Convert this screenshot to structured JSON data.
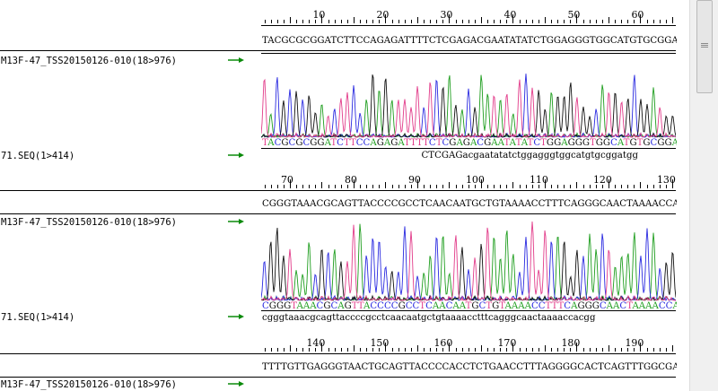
{
  "reference": {
    "name": "M13F-47_TSS20150126-010(18>976)",
    "rows": [
      "TACGCGCGGATCTTCCAGAGATTTTCTCGAGACGAATATATCTGGAGGGTGGCATGTGCGGATGG",
      "CGGGTAAACGCAGTTACCCCGCCTCAACAATGCTGTAAAACCTTTCAGGGCAACTAAAACCACGG",
      "TTTTGTTGAGGGTAACTGCAGTTACCCCACCTCTGAACCTTTAGGGGCACTCAGTTTGGCGATA"
    ]
  },
  "read": {
    "name": "71.SEQ(1>414)",
    "rows": [
      {
        "called": "TACGCGCGGATCTTCCAGAGATTTTCTCGAGACGAATATATCTGGAGGGTGGCATGTGCGGATGG",
        "aligned": "CTCGAGacgaatatatctggagggtggcatgtgcggatgg",
        "aligned_offset": 25
      },
      {
        "called": "CGGGTAAACGCAGTTACCCCGCCTCAACAATGCTGTAAAACCTTTCAGGGCAACTAAAACCACGG",
        "aligned": "cgggtaaacgcagttaccccgcctcaacaatgctgtaaaacctttcagggcaactaaaaccacgg",
        "aligned_offset": 0
      }
    ]
  },
  "rulers": [
    {
      "labels": [
        "10",
        "20",
        "30",
        "40",
        "50",
        "60"
      ]
    },
    {
      "labels": [
        "70",
        "80",
        "90",
        "100",
        "110",
        "120",
        "130"
      ]
    },
    {
      "labels": [
        "140",
        "150",
        "160",
        "170",
        "180",
        "190"
      ]
    }
  ],
  "colors": {
    "A": "#1f9e1f",
    "C": "#2a2ae0",
    "G": "#111111",
    "T": "#e23c8a",
    "arrow": "#0a8a0a"
  },
  "icons": {
    "arrow": "right-arrow-icon"
  }
}
